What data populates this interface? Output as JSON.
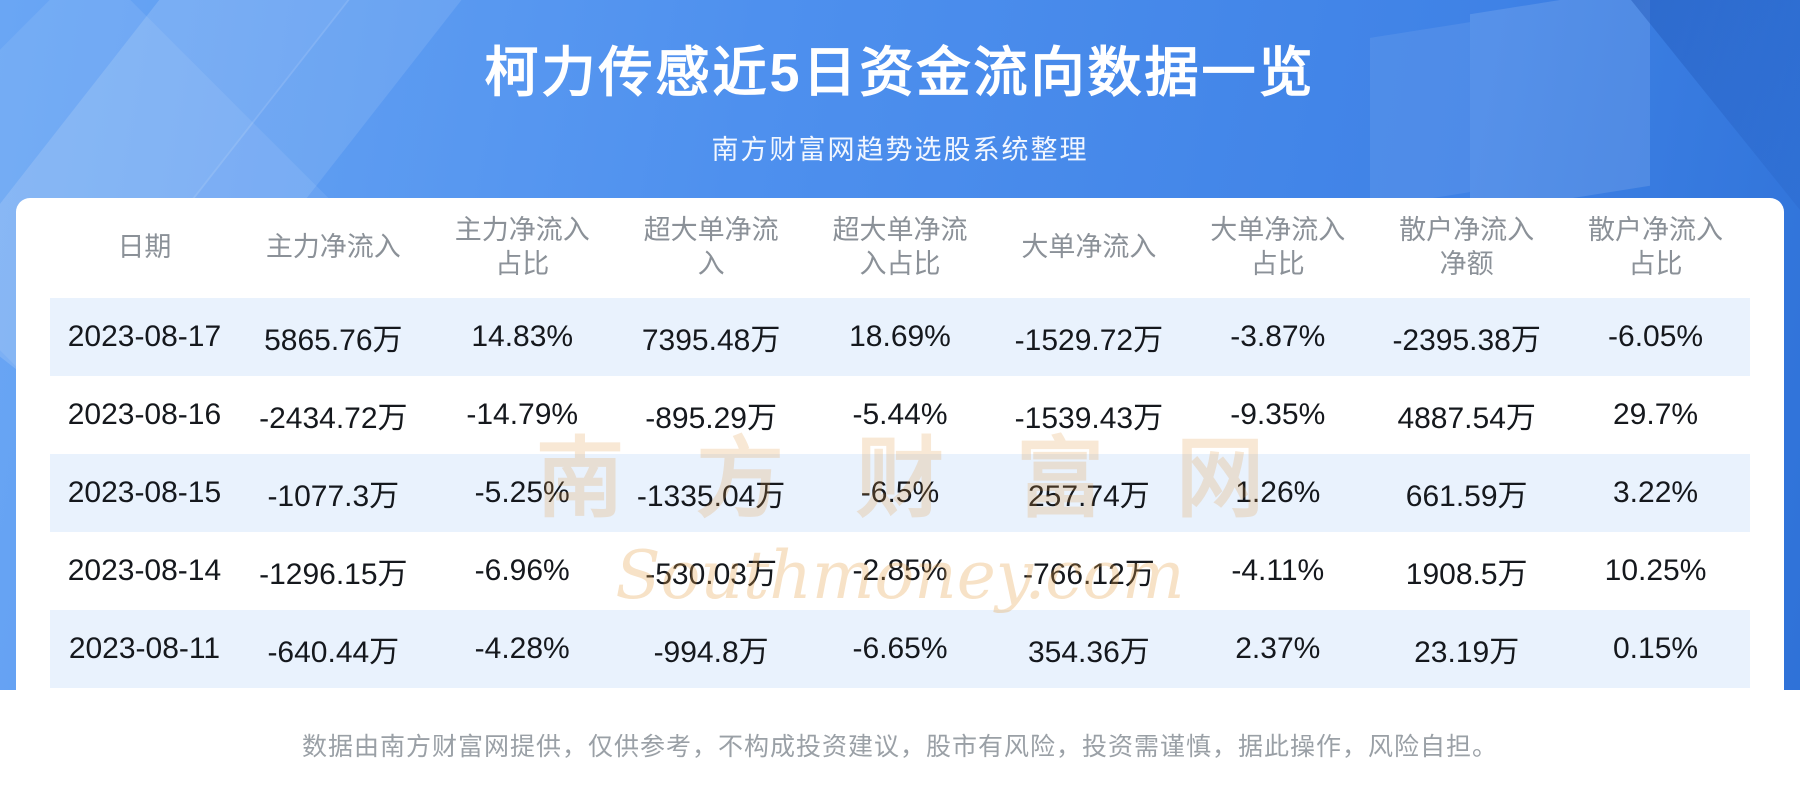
{
  "banner": {
    "title": "柯力传感近5日资金流向数据一览",
    "subtitle": "南方财富网趋势选股系统整理"
  },
  "watermark": {
    "cn": "南方财富网",
    "en": "Southmoney.com"
  },
  "footer": {
    "disclaimer": "数据由南方财富网提供，仅供参考，不构成投资建议，股市有风险，投资需谨慎，据此操作，风险自担。"
  },
  "colors": {
    "banner_blue": "#4a8ceb",
    "stripe_blue": "#e9f2fd",
    "header_text": "#8b9198",
    "body_text": "#15181d",
    "watermark_orange": "#e29840",
    "footer_text": "#9aa0a6"
  },
  "chart_data": {
    "type": "table",
    "title": "柯力传感近5日资金流向数据一览",
    "column_labels": [
      "日期",
      "主力净流入",
      "主力净流入占比",
      "超大单净流入",
      "超大单净流入占比",
      "大单净流入",
      "大单净流入占比",
      "散户净流入净额",
      "散户净流入占比"
    ],
    "columns": [
      {
        "l1": "日期",
        "l2": ""
      },
      {
        "l1": "主力净流入",
        "l2": ""
      },
      {
        "l1": "主力净流入",
        "l2": "占比"
      },
      {
        "l1": "超大单净流",
        "l2": "入"
      },
      {
        "l1": "超大单净流",
        "l2": "入占比"
      },
      {
        "l1": "大单净流入",
        "l2": ""
      },
      {
        "l1": "大单净流入",
        "l2": "占比"
      },
      {
        "l1": "散户净流入",
        "l2": "净额"
      },
      {
        "l1": "散户净流入",
        "l2": "占比"
      }
    ],
    "rows": [
      [
        "2023-08-17",
        "5865.76万",
        "14.83%",
        "7395.48万",
        "18.69%",
        "-1529.72万",
        "-3.87%",
        "-2395.38万",
        "-6.05%"
      ],
      [
        "2023-08-16",
        "-2434.72万",
        "-14.79%",
        "-895.29万",
        "-5.44%",
        "-1539.43万",
        "-9.35%",
        "4887.54万",
        "29.7%"
      ],
      [
        "2023-08-15",
        "-1077.3万",
        "-5.25%",
        "-1335.04万",
        "-6.5%",
        "257.74万",
        "1.26%",
        "661.59万",
        "3.22%"
      ],
      [
        "2023-08-14",
        "-1296.15万",
        "-6.96%",
        "-530.03万",
        "-2.85%",
        "-766.12万",
        "-4.11%",
        "1908.5万",
        "10.25%"
      ],
      [
        "2023-08-11",
        "-640.44万",
        "-4.28%",
        "-994.8万",
        "-6.65%",
        "354.36万",
        "2.37%",
        "23.19万",
        "0.15%"
      ]
    ]
  }
}
